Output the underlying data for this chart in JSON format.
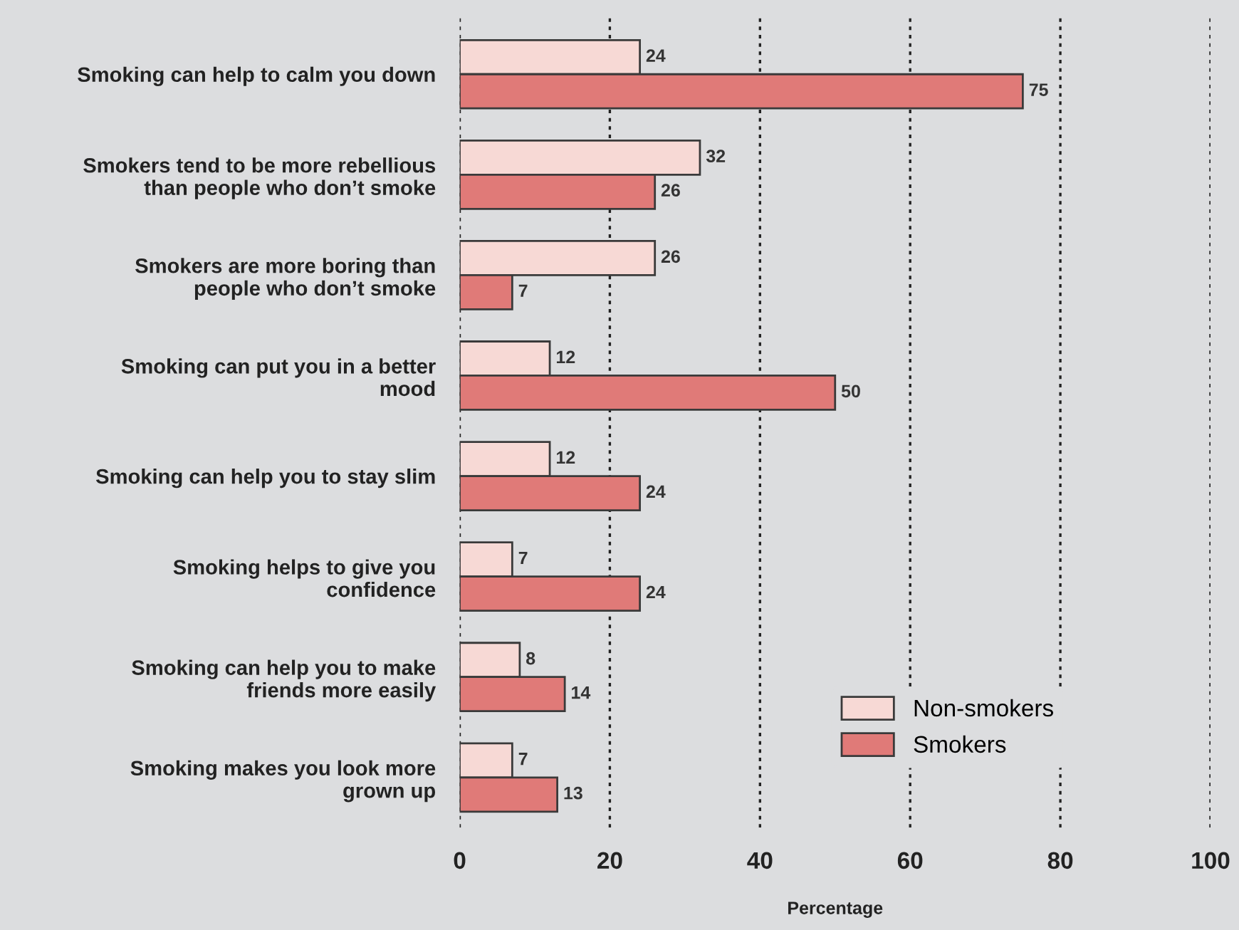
{
  "chart_data": {
    "type": "bar",
    "orientation": "horizontal",
    "xlabel": "Percentage",
    "categories": [
      "Smoking can help to calm you down",
      "Smokers tend to be more rebellious\nthan people who don’t smoke",
      "Smokers are more boring than\npeople who don’t smoke",
      "Smoking can put you in a better\nmood",
      "Smoking can help you to stay slim",
      "Smoking helps to give you\nconfidence",
      "Smoking can help you to make\nfriends more easily",
      "Smoking makes you look more\ngrown up"
    ],
    "series": [
      {
        "name": "Non-smokers",
        "color": "#f7d9d5",
        "values": [
          24,
          32,
          26,
          12,
          12,
          7,
          8,
          7
        ]
      },
      {
        "name": "Smokers",
        "color": "#e07a78",
        "values": [
          75,
          26,
          7,
          50,
          24,
          24,
          14,
          13
        ]
      }
    ],
    "xlim": [
      0,
      100
    ],
    "xticks": [
      0,
      20,
      40,
      60,
      80,
      100
    ],
    "grid": "x",
    "legend": "bottom right",
    "data_labels": true
  }
}
